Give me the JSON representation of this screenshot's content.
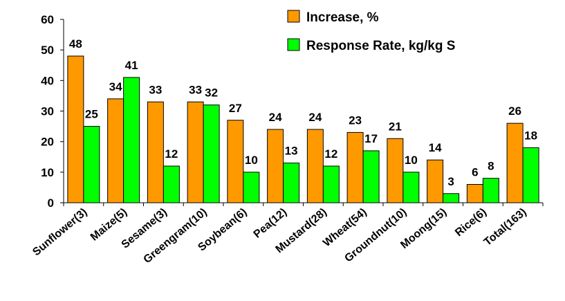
{
  "chart_data": {
    "type": "bar",
    "categories": [
      "Sunflower(3)",
      "Maize(5)",
      "Sesame(3)",
      "Greengram(10)",
      "Soybean(6)",
      "Pea(12)",
      "Mustard(28)",
      "Wheat(54)",
      "Groundnut(10)",
      "Moong(15)",
      "Rice(6)",
      "Total(163)"
    ],
    "series": [
      {
        "name": "Increase, %",
        "color": "#FF9900",
        "values": [
          48,
          34,
          33,
          33,
          27,
          24,
          24,
          23,
          21,
          14,
          6,
          26
        ]
      },
      {
        "name": "Response Rate, kg/kg S",
        "color": "#00FF00",
        "values": [
          25,
          41,
          12,
          32,
          10,
          13,
          12,
          17,
          10,
          3,
          8,
          18
        ]
      }
    ],
    "title": "",
    "xlabel": "",
    "ylabel": "",
    "ylim": [
      0,
      60
    ],
    "yticks": [
      "0",
      "10",
      "20",
      "30",
      "40",
      "50",
      "60"
    ],
    "grid": false,
    "legend_position": "top-right",
    "data_labels": true
  }
}
